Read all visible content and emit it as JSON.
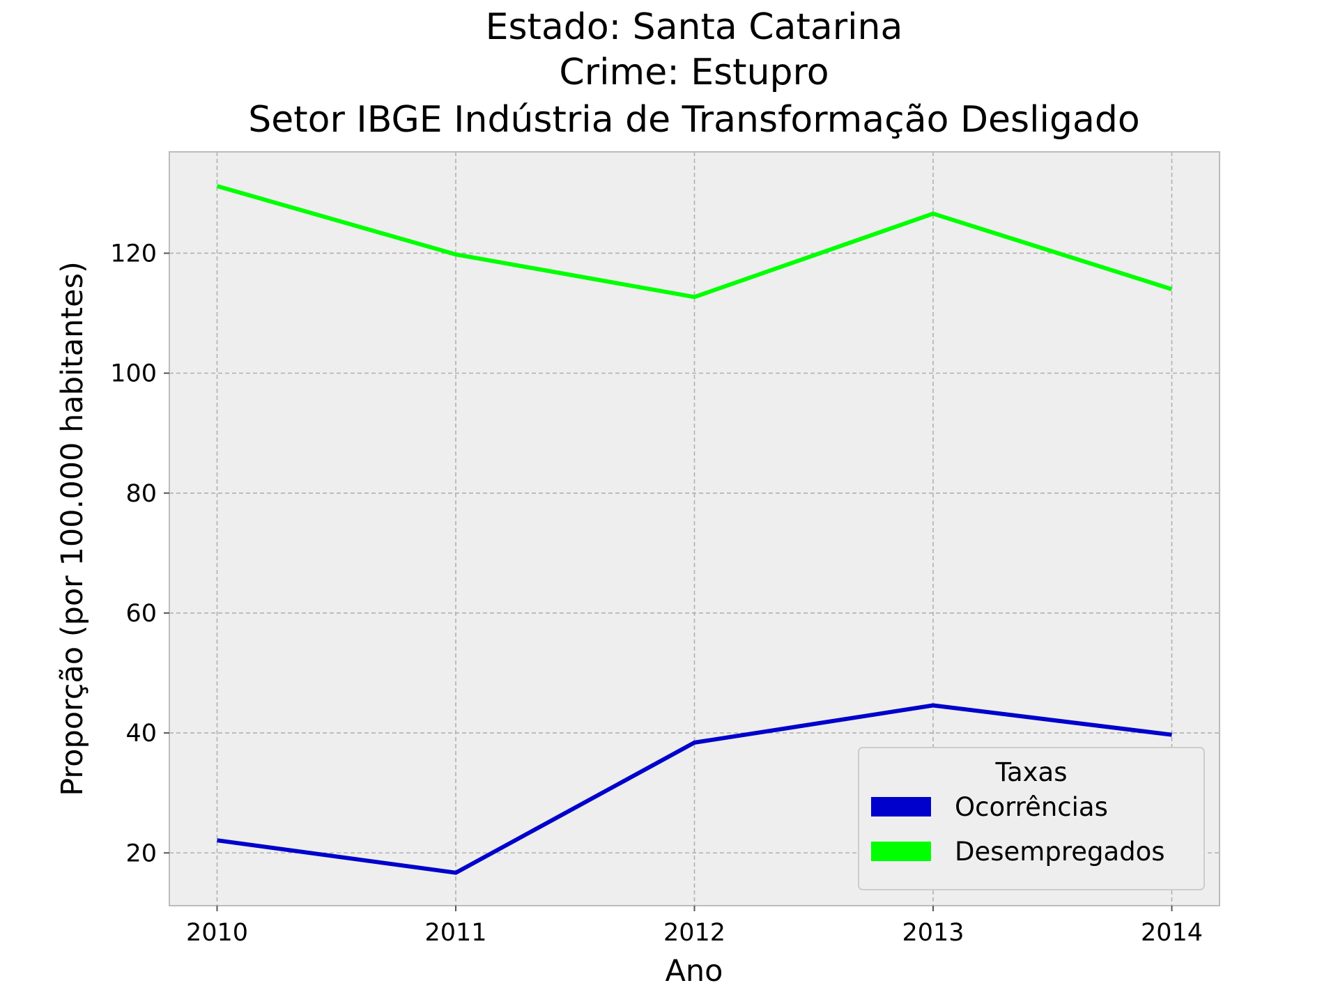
{
  "chart_data": {
    "type": "line",
    "title_lines": [
      "Estado: Santa Catarina",
      "Crime: Estupro",
      "Setor IBGE  Indústria de Transformação   Desligado"
    ],
    "xlabel": "Ano",
    "ylabel": "Proporção (por 100.000 habitantes)",
    "x": [
      2010,
      2011,
      2012,
      2013,
      2014
    ],
    "x_tick_labels": [
      "2010",
      "2011",
      "2012",
      "2013",
      "2014"
    ],
    "xlim": [
      2009.8,
      2014.2
    ],
    "ylim": [
      11.2,
      136.9
    ],
    "y_ticks": [
      20,
      40,
      60,
      80,
      100,
      120
    ],
    "y_tick_labels": [
      "20",
      "40",
      "60",
      "80",
      "100",
      "120"
    ],
    "grid": true,
    "legend": {
      "title": "Taxas",
      "placement": "lower-right"
    },
    "series": [
      {
        "name": "Ocorrências",
        "color": "#0000cc",
        "values": [
          22.1,
          16.7,
          38.4,
          44.6,
          39.7
        ]
      },
      {
        "name": "Desempregados",
        "color": "#00ff00",
        "values": [
          131.2,
          119.8,
          112.7,
          126.6,
          114.0
        ]
      }
    ]
  }
}
